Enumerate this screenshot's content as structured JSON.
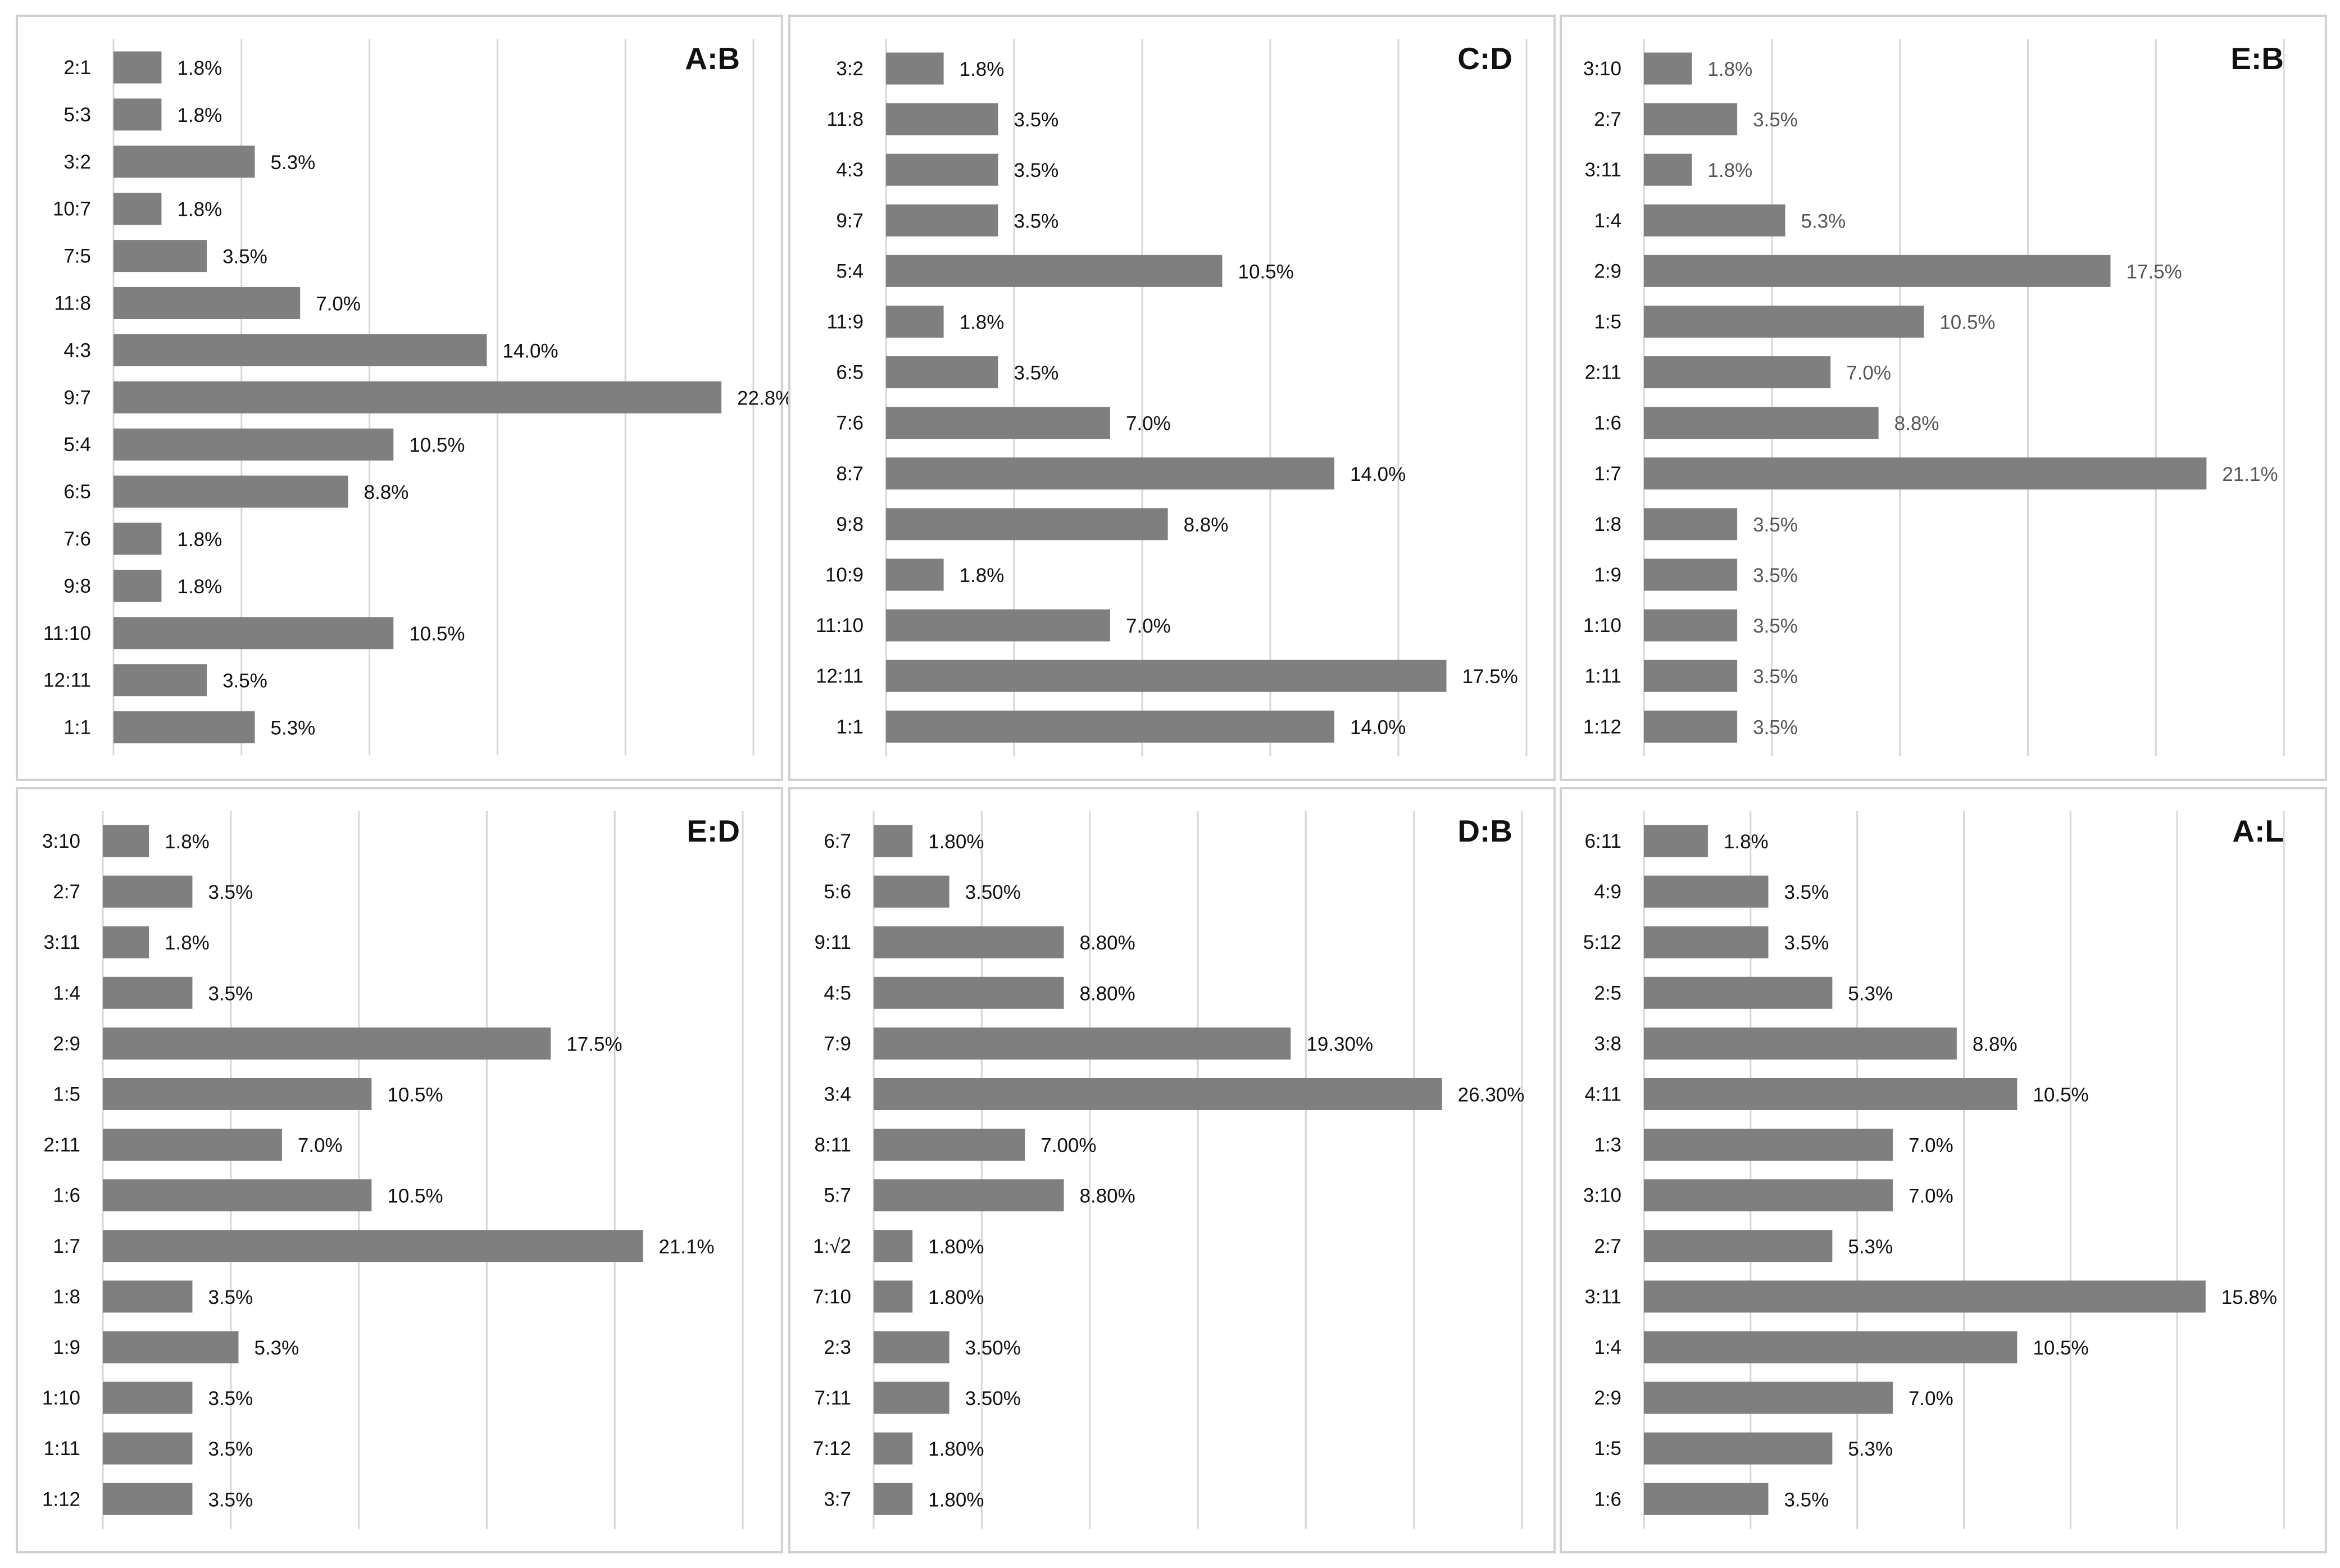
{
  "chart_data": [
    {
      "type": "bar",
      "orientation": "horizontal",
      "title": "A:B",
      "label_color": "#111111",
      "bar_color": "#7f7f7f",
      "xlim": [
        0,
        24
      ],
      "categories": [
        "2:1",
        "5:3",
        "3:2",
        "10:7",
        "7:5",
        "11:8",
        "4:3",
        "9:7",
        "5:4",
        "6:5",
        "7:6",
        "9:8",
        "11:10",
        "12:11",
        "1:1"
      ],
      "values": [
        1.8,
        1.8,
        5.3,
        1.8,
        3.5,
        7.0,
        14.0,
        22.8,
        10.5,
        8.8,
        1.8,
        1.8,
        10.5,
        3.5,
        5.3
      ],
      "labels": [
        "1.8%",
        "1.8%",
        "5.3%",
        "1.8%",
        "3.5%",
        "7.0%",
        "14.0%",
        "22.8%",
        "10.5%",
        "8.8%",
        "1.8%",
        "1.8%",
        "10.5%",
        "3.5%",
        "5.3%"
      ],
      "gridlines": true
    },
    {
      "type": "bar",
      "orientation": "horizontal",
      "title": "C:D",
      "label_color": "#111111",
      "bar_color": "#7f7f7f",
      "xlim": [
        0,
        20
      ],
      "categories": [
        "3:2",
        "11:8",
        "4:3",
        "9:7",
        "5:4",
        "11:9",
        "6:5",
        "7:6",
        "8:7",
        "9:8",
        "10:9",
        "11:10",
        "12:11",
        "1:1"
      ],
      "values": [
        1.8,
        3.5,
        3.5,
        3.5,
        10.5,
        1.8,
        3.5,
        7.0,
        14.0,
        8.8,
        1.8,
        7.0,
        17.5,
        14.0
      ],
      "labels": [
        "1.8%",
        "3.5%",
        "3.5%",
        "3.5%",
        "10.5%",
        "1.8%",
        "3.5%",
        "7.0%",
        "14.0%",
        "8.8%",
        "1.8%",
        "7.0%",
        "17.5%",
        "14.0%"
      ],
      "gridlines": true
    },
    {
      "type": "bar",
      "orientation": "horizontal",
      "title": "E:B",
      "label_color": "#555555",
      "bar_color": "#7f7f7f",
      "xlim": [
        0,
        24
      ],
      "categories": [
        "3:10",
        "2:7",
        "3:11",
        "1:4",
        "2:9",
        "1:5",
        "2:11",
        "1:6",
        "1:7",
        "1:8",
        "1:9",
        "1:10",
        "1:11",
        "1:12"
      ],
      "values": [
        1.8,
        3.5,
        1.8,
        5.3,
        17.5,
        10.5,
        7.0,
        8.8,
        21.1,
        3.5,
        3.5,
        3.5,
        3.5,
        3.5
      ],
      "labels": [
        "1.8%",
        "3.5%",
        "1.8%",
        "5.3%",
        "17.5%",
        "10.5%",
        "7.0%",
        "8.8%",
        "21.1%",
        "3.5%",
        "3.5%",
        "3.5%",
        "3.5%",
        "3.5%"
      ],
      "gridlines": true
    },
    {
      "type": "bar",
      "orientation": "horizontal",
      "title": "E:D",
      "label_color": "#111111",
      "bar_color": "#7f7f7f",
      "xlim": [
        0,
        25
      ],
      "categories": [
        "3:10",
        "2:7",
        "3:11",
        "1:4",
        "2:9",
        "1:5",
        "2:11",
        "1:6",
        "1:7",
        "1:8",
        "1:9",
        "1:10",
        "1:11",
        "1:12"
      ],
      "values": [
        1.8,
        3.5,
        1.8,
        3.5,
        17.5,
        10.5,
        7.0,
        10.5,
        21.1,
        3.5,
        5.3,
        3.5,
        3.5,
        3.5
      ],
      "labels": [
        "1.8%",
        "3.5%",
        "1.8%",
        "3.5%",
        "17.5%",
        "10.5%",
        "7.0%",
        "10.5%",
        "21.1%",
        "3.5%",
        "5.3%",
        "3.5%",
        "3.5%",
        "3.5%"
      ],
      "gridlines": true
    },
    {
      "type": "bar",
      "orientation": "horizontal",
      "title": "D:B",
      "label_color": "#111111",
      "bar_color": "#7f7f7f",
      "xlim": [
        0,
        30
      ],
      "categories": [
        "6:7",
        "5:6",
        "9:11",
        "4:5",
        "7:9",
        "3:4",
        "8:11",
        "5:7",
        "1:√2",
        "7:10",
        "2:3",
        "7:11",
        "7:12",
        "3:7"
      ],
      "values": [
        1.8,
        3.5,
        8.8,
        8.8,
        19.3,
        26.3,
        7.0,
        8.8,
        1.8,
        1.8,
        3.5,
        3.5,
        1.8,
        1.8
      ],
      "labels": [
        "1.80%",
        "3.50%",
        "8.80%",
        "8.80%",
        "19.30%",
        "26.30%",
        "7.00%",
        "8.80%",
        "1.80%",
        "1.80%",
        "3.50%",
        "3.50%",
        "1.80%",
        "1.80%"
      ],
      "gridlines": true
    },
    {
      "type": "bar",
      "orientation": "horizontal",
      "title": "A:L",
      "label_color": "#111111",
      "bar_color": "#7f7f7f",
      "xlim": [
        0,
        18
      ],
      "categories": [
        "6:11",
        "4:9",
        "5:12",
        "2:5",
        "3:8",
        "4:11",
        "1:3",
        "3:10",
        "2:7",
        "3:11",
        "1:4",
        "2:9",
        "1:5",
        "1:6"
      ],
      "values": [
        1.8,
        3.5,
        3.5,
        5.3,
        8.8,
        10.5,
        7.0,
        7.0,
        5.3,
        15.8,
        10.5,
        7.0,
        5.3,
        3.5
      ],
      "labels": [
        "1.8%",
        "3.5%",
        "3.5%",
        "5.3%",
        "8.8%",
        "10.5%",
        "7.0%",
        "7.0%",
        "5.3%",
        "15.8%",
        "10.5%",
        "7.0%",
        "5.3%",
        "3.5%"
      ],
      "gridlines": true
    }
  ]
}
